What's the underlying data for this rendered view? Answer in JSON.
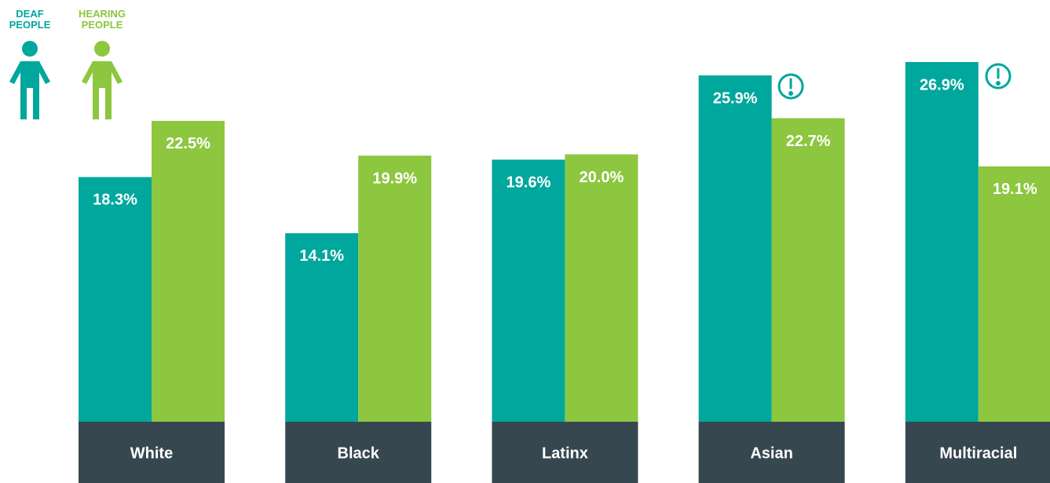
{
  "chart_data": {
    "type": "bar",
    "categories": [
      "White",
      "Black",
      "Latinx",
      "Asian",
      "Multiracial"
    ],
    "series": [
      {
        "name": "DEAF PEOPLE",
        "color": "#00a79d",
        "values": [
          18.3,
          14.1,
          19.6,
          25.9,
          26.9
        ],
        "value_labels": [
          "18.3%",
          "14.1%",
          "19.6%",
          "25.9%",
          "26.9%"
        ]
      },
      {
        "name": "HEARING PEOPLE",
        "color": "#8dc63f",
        "values": [
          22.5,
          19.9,
          20.0,
          22.7,
          19.1
        ],
        "value_labels": [
          "22.5%",
          "19.9%",
          "20.0%",
          "22.7%",
          "19.1%"
        ]
      }
    ]
  }
}
